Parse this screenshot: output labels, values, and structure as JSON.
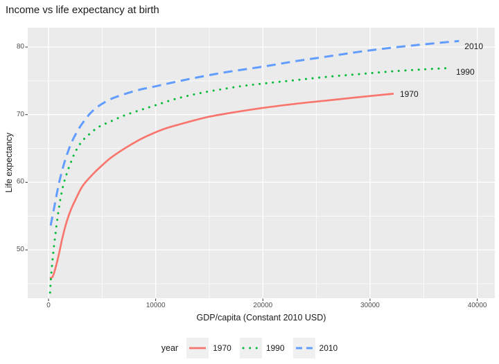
{
  "title": "Income vs life expectancy at birth",
  "colors": {
    "panel_bg": "#EBEBEB",
    "grid": "#FFFFFF",
    "tick_mark": "#333333",
    "tick_text": "#4D4D4D",
    "text": "#1A1A1A",
    "legend_key_bg": "#F0F0F0"
  },
  "chart_data": {
    "type": "line",
    "title": "Income vs life expectancy at birth",
    "xlabel": "GDP/capita (Constant 2010 USD)",
    "ylabel": "Life expectancy",
    "xlim": [
      -2000,
      41600
    ],
    "ylim": [
      42.8,
      82.9
    ],
    "x_major_ticks": [
      0,
      10000,
      20000,
      30000,
      40000
    ],
    "x_minor_ticks": [
      5000,
      15000,
      25000,
      35000
    ],
    "y_major_ticks": [
      50,
      60,
      70,
      80
    ],
    "y_minor_ticks": [
      45,
      55,
      65,
      75
    ],
    "grid": true,
    "legend_title": "year",
    "legend_position": "bottom",
    "series": [
      {
        "name": "1970",
        "end_label": "1970",
        "color": "#F8766D",
        "style": "solid",
        "points": [
          [
            130,
            45.8
          ],
          [
            400,
            46.1
          ],
          [
            700,
            47.6
          ],
          [
            1000,
            49.6
          ],
          [
            1300,
            51.8
          ],
          [
            1700,
            54.2
          ],
          [
            2100,
            56.0
          ],
          [
            2600,
            57.7
          ],
          [
            3200,
            59.5
          ],
          [
            4200,
            61.3
          ],
          [
            5000,
            62.5
          ],
          [
            5800,
            63.6
          ],
          [
            7000,
            64.9
          ],
          [
            8500,
            66.3
          ],
          [
            9700,
            67.2
          ],
          [
            11000,
            68.0
          ],
          [
            13000,
            68.9
          ],
          [
            15000,
            69.7
          ],
          [
            17500,
            70.4
          ],
          [
            20000,
            71.0
          ],
          [
            23000,
            71.6
          ],
          [
            26000,
            72.1
          ],
          [
            29000,
            72.6
          ],
          [
            32200,
            73.1
          ]
        ]
      },
      {
        "name": "1990",
        "end_label": "1990",
        "color": "#00BA38",
        "style": "dotted",
        "points": [
          [
            140,
            43.7
          ],
          [
            250,
            46.3
          ],
          [
            380,
            48.6
          ],
          [
            500,
            50.4
          ],
          [
            650,
            52.4
          ],
          [
            800,
            54.3
          ],
          [
            1000,
            56.5
          ],
          [
            1200,
            58.3
          ],
          [
            1450,
            60.0
          ],
          [
            1750,
            61.5
          ],
          [
            2100,
            63.0
          ],
          [
            2500,
            64.5
          ],
          [
            3100,
            66.0
          ],
          [
            3800,
            67.1
          ],
          [
            4700,
            68.2
          ],
          [
            5800,
            69.0
          ],
          [
            7100,
            69.9
          ],
          [
            8600,
            70.7
          ],
          [
            10000,
            71.4
          ],
          [
            12000,
            72.4
          ],
          [
            14500,
            73.3
          ],
          [
            17500,
            74.1
          ],
          [
            20000,
            74.6
          ],
          [
            23000,
            75.1
          ],
          [
            26000,
            75.6
          ],
          [
            29000,
            76.0
          ],
          [
            32000,
            76.4
          ],
          [
            35000,
            76.7
          ],
          [
            37500,
            76.9
          ]
        ]
      },
      {
        "name": "2010",
        "end_label": "2010",
        "color": "#619CFF",
        "style": "dashed",
        "points": [
          [
            200,
            53.6
          ],
          [
            350,
            54.8
          ],
          [
            500,
            56.0
          ],
          [
            700,
            57.7
          ],
          [
            900,
            59.3
          ],
          [
            1100,
            60.7
          ],
          [
            1400,
            62.5
          ],
          [
            1700,
            64.0
          ],
          [
            2100,
            65.7
          ],
          [
            2600,
            67.3
          ],
          [
            3200,
            68.8
          ],
          [
            3900,
            70.2
          ],
          [
            4700,
            71.3
          ],
          [
            5800,
            72.3
          ],
          [
            7000,
            73.0
          ],
          [
            8500,
            73.7
          ],
          [
            10000,
            74.2
          ],
          [
            12000,
            74.9
          ],
          [
            14500,
            75.7
          ],
          [
            17000,
            76.4
          ],
          [
            20000,
            77.1
          ],
          [
            23000,
            77.9
          ],
          [
            26000,
            78.6
          ],
          [
            29000,
            79.3
          ],
          [
            32000,
            79.9
          ],
          [
            35000,
            80.4
          ],
          [
            38300,
            80.9
          ]
        ]
      }
    ]
  }
}
